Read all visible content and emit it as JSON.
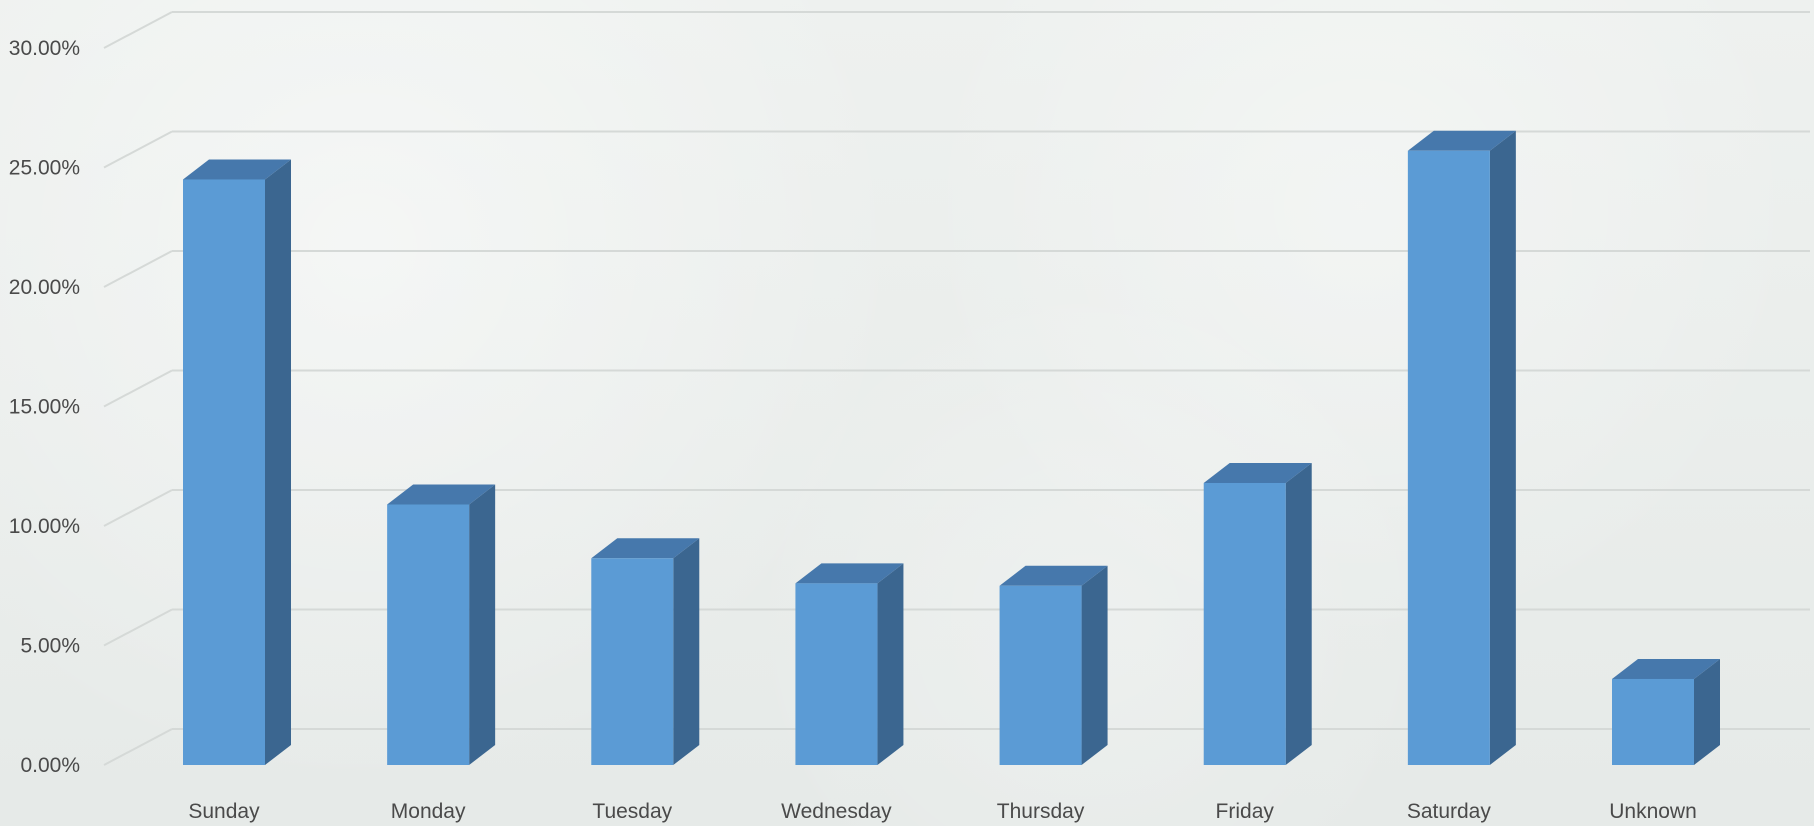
{
  "chart_data": {
    "type": "bar",
    "categories": [
      "Sunday",
      "Monday",
      "Tuesday",
      "Wednesday",
      "Thursday",
      "Friday",
      "Saturday",
      "Unknown"
    ],
    "values": [
      24.5,
      10.9,
      8.65,
      7.6,
      7.5,
      11.8,
      25.7,
      3.6
    ],
    "ylim": [
      0,
      30
    ],
    "y_ticks": [
      "0.00%",
      "5.00%",
      "10.00%",
      "15.00%",
      "20.00%",
      "25.00%",
      "30.00%"
    ],
    "title": "",
    "xlabel": "",
    "ylabel": "",
    "grid": true,
    "colors": {
      "bar_front": "#5b9bd5",
      "bar_side": "#3b6690",
      "bar_top": "#4678ac",
      "grid": "#d5d9d7",
      "text": "#4a4a4a"
    }
  }
}
